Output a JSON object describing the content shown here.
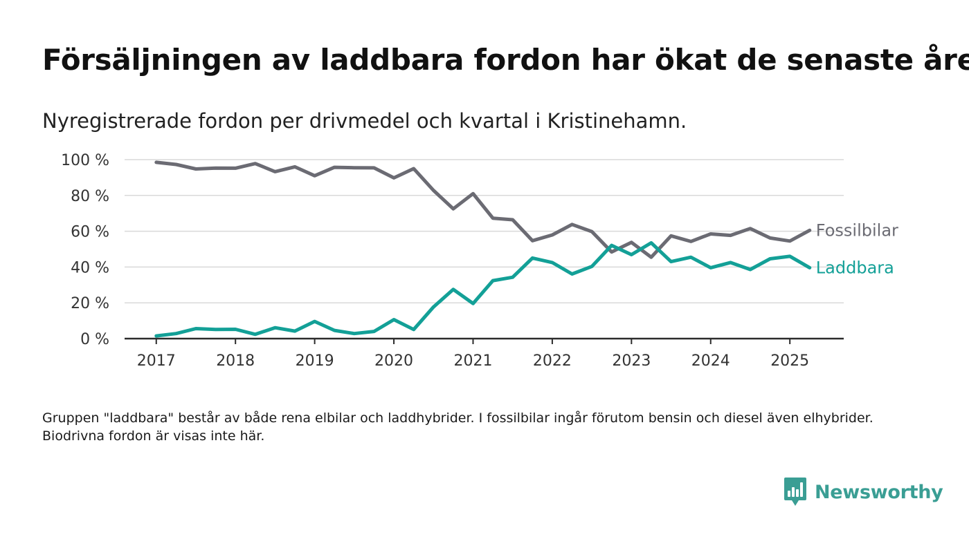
{
  "title": "Försäljningen av laddbara fordon har ökat de senaste åren",
  "subtitle": "Nyregistrerade fordon per drivmedel och kvartal i Kristinehamn.",
  "footnote": "Gruppen \"laddbara\" består av både rena elbilar och laddhybrider. I fossilbilar ingår förutom bensin och diesel även elhybrider. Biodrivna fordon är visas inte här.",
  "brand": {
    "name": "Newsworthy",
    "icon": "newsworthy-chat-bars-icon",
    "color": "#3a9e94"
  },
  "chart_data": {
    "type": "line",
    "title": "",
    "xlabel": "",
    "ylabel": "",
    "x_unit": "year (quarterly points)",
    "x": [
      2017,
      2017.25,
      2017.5,
      2017.75,
      2018,
      2018.25,
      2018.5,
      2018.75,
      2019,
      2019.25,
      2019.5,
      2019.75,
      2020,
      2020.25,
      2020.5,
      2020.75,
      2021,
      2021.25,
      2021.5,
      2021.75,
      2022,
      2022.25,
      2022.5,
      2022.75,
      2023,
      2023.25,
      2023.5,
      2023.75,
      2024,
      2024.25,
      2024.5,
      2024.75,
      2025,
      2025.25
    ],
    "xticks": [
      2017,
      2018,
      2019,
      2020,
      2021,
      2022,
      2023,
      2024,
      2025
    ],
    "xtick_labels": [
      "2017",
      "2018",
      "2019",
      "2020",
      "2021",
      "2022",
      "2023",
      "2024",
      "2025"
    ],
    "xlim": [
      2016.6,
      2025.68
    ],
    "ylim": [
      0,
      100
    ],
    "yticks": [
      0,
      20,
      40,
      60,
      80,
      100
    ],
    "ytick_labels": [
      "0 %",
      "20 %",
      "40 %",
      "60 %",
      "80 %",
      "100 %"
    ],
    "grid": true,
    "legend": "direct labels at line ends",
    "series": [
      {
        "name": "Fossilbilar",
        "color": "#6b6b73",
        "values": [
          98.5,
          97.3,
          94.8,
          95.3,
          95.2,
          97.8,
          93.3,
          96.0,
          91.0,
          95.7,
          95.5,
          95.4,
          89.8,
          95.0,
          82.8,
          72.5,
          81.0,
          67.3,
          66.4,
          54.7,
          57.9,
          63.8,
          59.8,
          48.4,
          53.8,
          45.5,
          57.4,
          54.3,
          58.5,
          57.7,
          61.5,
          56.2,
          54.5,
          60.5
        ]
      },
      {
        "name": "Laddbara",
        "color": "#13a097",
        "values": [
          1.5,
          2.8,
          5.6,
          5.1,
          5.2,
          2.4,
          6.1,
          4.2,
          9.6,
          4.6,
          2.8,
          4.0,
          10.6,
          5.1,
          17.7,
          27.5,
          19.6,
          32.4,
          34.3,
          45.0,
          42.5,
          36.1,
          40.3,
          52.1,
          46.9,
          53.5,
          43.0,
          45.5,
          39.6,
          42.5,
          38.6,
          44.6,
          46.0,
          39.6
        ]
      }
    ]
  }
}
